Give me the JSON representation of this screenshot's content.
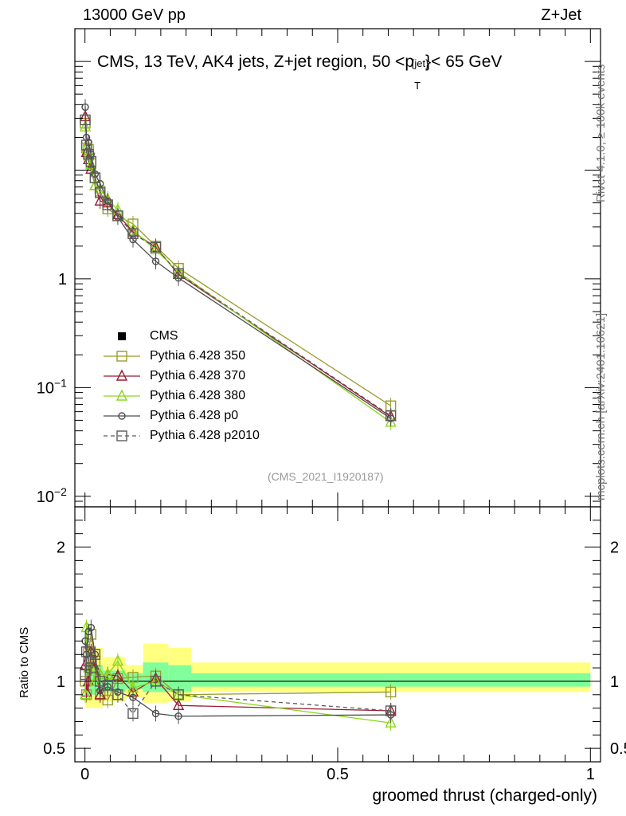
{
  "header": {
    "energy_label": "13000 GeV pp",
    "process_label": "Z+Jet",
    "title_main": "CMS, 13 TeV, AK4 jets, Z+jet region, 50 <p",
    "title_sup": "{jet}",
    "title_sub": "T",
    "title_end": "}< 65 GeV",
    "rivet_label": "Rivet 4.1.0, ≥ 100k events",
    "mcplots_label": "mcplots.cern.ch [arXiv:2401.10621]",
    "analysis_id": "(CMS_2021_I1920187)"
  },
  "colors": {
    "data": "#000000",
    "p350": "#9b9b2b",
    "p370": "#9b1b30",
    "p380": "#8ad61a",
    "p0": "#4d4d4d",
    "p2010": "#5a5a5a",
    "band_yellow": "#ffff80",
    "band_green": "#80ff9a"
  },
  "legend": [
    {
      "key": "data",
      "label": "CMS",
      "marker": "square-filled",
      "line": "none"
    },
    {
      "key": "p350",
      "label": "Pythia 6.428 350",
      "marker": "square-open",
      "line": "solid"
    },
    {
      "key": "p370",
      "label": "Pythia 6.428 370",
      "marker": "triangle-open",
      "line": "solid"
    },
    {
      "key": "p380",
      "label": "Pythia 6.428 380",
      "marker": "triangle-open",
      "line": "solid"
    },
    {
      "key": "p0",
      "label": "Pythia 6.428 p0",
      "marker": "circle-open",
      "line": "solid"
    },
    {
      "key": "p2010",
      "label": "Pythia 6.428 p2010",
      "marker": "square-open",
      "line": "dashed"
    }
  ],
  "chart_data": [
    {
      "type": "line",
      "panel": "main",
      "yscale": "log",
      "title": "CMS, 13 TeV, AK4 jets, Z+jet region, 50 <p_T^{jet}< 65 GeV",
      "xlabel": "groomed thrust (charged-only)",
      "ylabel": "",
      "xlim": [
        -0.02,
        1.02
      ],
      "ylim": [
        0.008,
        200
      ],
      "yticks": [
        {
          "value": 1,
          "label": "1"
        },
        {
          "value": 0.1,
          "label": "10",
          "sup": "−1"
        },
        {
          "value": 0.01,
          "label": "10",
          "sup": "−2"
        }
      ],
      "x": [
        0.0005,
        0.003,
        0.007,
        0.012,
        0.02,
        0.03,
        0.045,
        0.065,
        0.095,
        0.14,
        0.185,
        0.605
      ],
      "series": [
        {
          "key": "p350",
          "name": "Pythia 6.428 350",
          "values": [
            27,
            16,
            15.5,
            11.5,
            8.5,
            6.4,
            4.4,
            3.8,
            3.2,
            2.0,
            1.25,
            0.068
          ]
        },
        {
          "key": "p370",
          "name": "Pythia 6.428 370",
          "values": [
            31,
            14.5,
            12.5,
            10.2,
            7.2,
            5.2,
            5.0,
            3.9,
            2.7,
            1.95,
            1.1,
            0.054
          ]
        },
        {
          "key": "p380",
          "name": "Pythia 6.428 380",
          "values": [
            25,
            16,
            13.5,
            11.2,
            7.2,
            6.7,
            5.4,
            4.3,
            2.8,
            1.85,
            1.15,
            0.048
          ]
        },
        {
          "key": "p0",
          "name": "Pythia 6.428 p0",
          "values": [
            38,
            20,
            18,
            14,
            9.2,
            7.5,
            5.2,
            3.7,
            2.3,
            1.45,
            1.02,
            0.052
          ]
        },
        {
          "key": "p2010",
          "name": "Pythia 6.428 p2010",
          "values": [
            29,
            17,
            14,
            12,
            8.5,
            6.2,
            4.8,
            3.8,
            2.6,
            1.95,
            1.12,
            0.055
          ]
        }
      ]
    },
    {
      "type": "line",
      "panel": "ratio",
      "ylabel": "Ratio to CMS",
      "xlabel": "groomed thrust (charged-only)",
      "xlim": [
        -0.02,
        1.02
      ],
      "ylim": [
        0.4,
        2.3
      ],
      "xticks": [
        {
          "value": 0,
          "label": "0"
        },
        {
          "value": 0.5,
          "label": "0.5"
        },
        {
          "value": 1,
          "label": "1"
        }
      ],
      "yticks": [
        {
          "value": 0.5,
          "label": "0.5"
        },
        {
          "value": 1,
          "label": "1"
        },
        {
          "value": 2,
          "label": "2"
        }
      ],
      "bands": [
        {
          "x0": 0.0,
          "x1": 0.035,
          "yellow": [
            0.8,
            1.25
          ],
          "green": [
            0.9,
            1.12
          ]
        },
        {
          "x0": 0.035,
          "x1": 0.08,
          "yellow": [
            0.85,
            1.18
          ],
          "green": [
            0.92,
            1.08
          ]
        },
        {
          "x0": 0.08,
          "x1": 0.115,
          "yellow": [
            0.88,
            1.12
          ],
          "green": [
            0.94,
            1.06
          ]
        },
        {
          "x0": 0.115,
          "x1": 0.165,
          "yellow": [
            0.84,
            1.28
          ],
          "green": [
            0.92,
            1.14
          ]
        },
        {
          "x0": 0.165,
          "x1": 0.21,
          "yellow": [
            0.85,
            1.25
          ],
          "green": [
            0.92,
            1.12
          ]
        },
        {
          "x0": 0.21,
          "x1": 1.0,
          "yellow": [
            0.92,
            1.14
          ],
          "green": [
            0.96,
            1.06
          ]
        }
      ],
      "x": [
        0.0005,
        0.003,
        0.007,
        0.012,
        0.02,
        0.03,
        0.045,
        0.065,
        0.095,
        0.14,
        0.185,
        0.605
      ],
      "series": [
        {
          "key": "p350",
          "name": "Pythia 6.428 350",
          "values": [
            1.0,
            0.9,
            1.22,
            1.35,
            1.15,
            0.9,
            0.86,
            1.02,
            1.03,
            1.04,
            0.9,
            0.92
          ]
        },
        {
          "key": "p370",
          "name": "Pythia 6.428 370",
          "values": [
            1.12,
            0.92,
            1.0,
            1.22,
            1.1,
            0.9,
            1.05,
            1.04,
            0.92,
            1.02,
            0.82,
            0.78
          ]
        },
        {
          "key": "p380",
          "name": "Pythia 6.428 380",
          "values": [
            0.9,
            1.4,
            1.1,
            1.1,
            1.0,
            1.05,
            1.05,
            1.15,
            0.95,
            1.0,
            0.9,
            0.69
          ]
        },
        {
          "key": "p0",
          "name": "Pythia 6.428 p0",
          "values": [
            1.3,
            1.2,
            1.37,
            1.4,
            1.2,
            0.93,
            0.96,
            0.92,
            0.88,
            0.76,
            0.74,
            0.75
          ]
        },
        {
          "key": "p2010",
          "name": "Pythia 6.428 p2010",
          "values": [
            1.05,
            1.22,
            1.15,
            1.1,
            1.2,
            1.0,
            0.97,
            0.9,
            0.76,
            1.0,
            0.9,
            0.78
          ]
        }
      ]
    }
  ]
}
